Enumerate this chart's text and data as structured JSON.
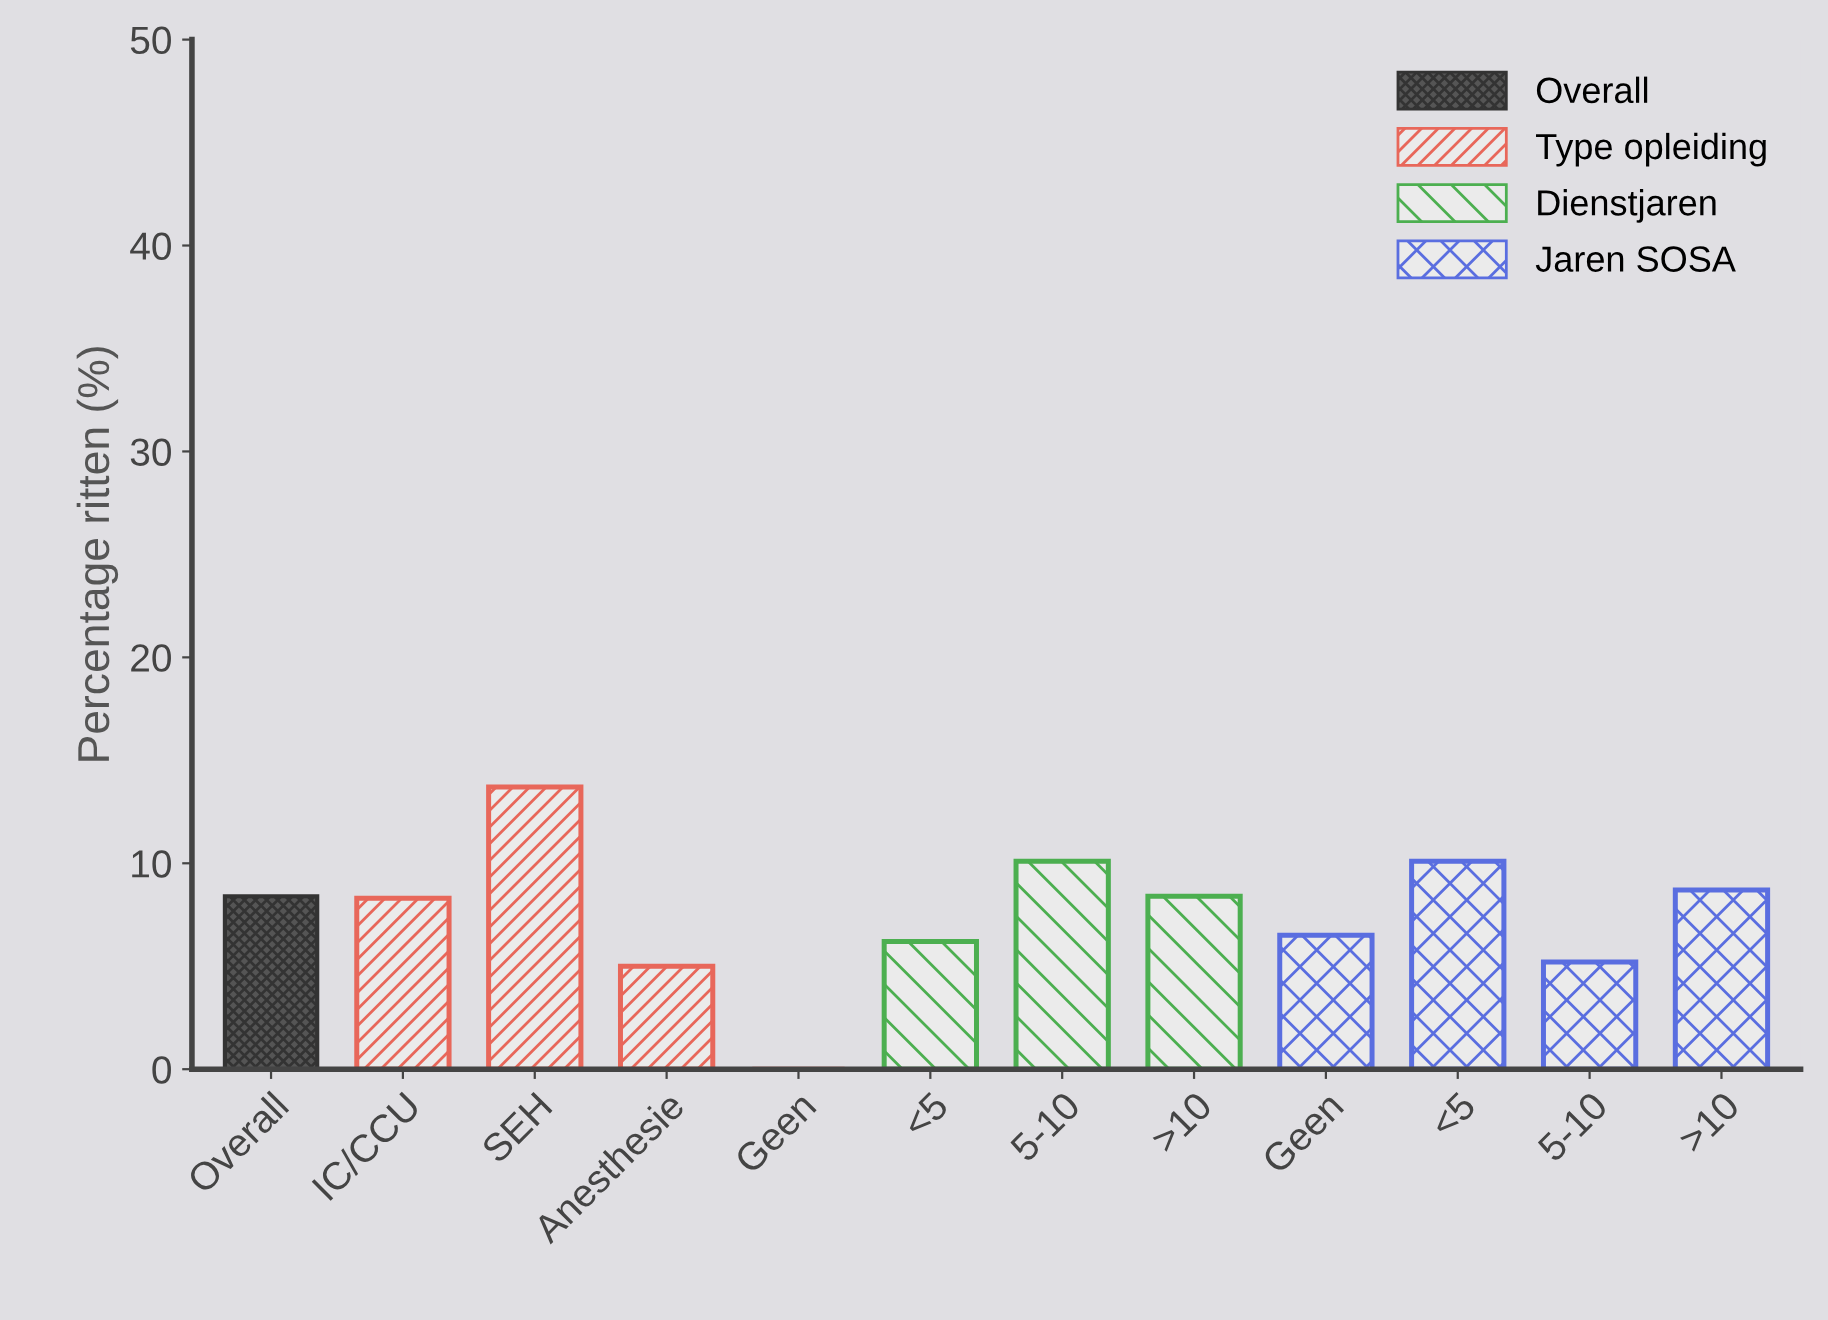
{
  "chart_data": {
    "type": "bar",
    "ylabel": "Percentage ritten (%)",
    "categories": [
      "Overall",
      "IC/CCU",
      "SEH",
      "Anesthesie",
      "Geen",
      "<5",
      "5-10",
      ">10",
      "Geen",
      "<5",
      "5-10",
      ">10"
    ],
    "series": [
      {
        "name": "Overall",
        "color": "#333333",
        "values": [
          8.4,
          null,
          null,
          null,
          null,
          null,
          null,
          null,
          null,
          null,
          null,
          null
        ]
      },
      {
        "name": "Type opleiding",
        "color": "#e8675a",
        "values": [
          null,
          8.3,
          13.7,
          5.0,
          0,
          null,
          null,
          null,
          null,
          null,
          null,
          null
        ]
      },
      {
        "name": "Dienstjaren",
        "color": "#4caf50",
        "values": [
          null,
          null,
          null,
          null,
          null,
          6.2,
          10.1,
          8.4,
          null,
          null,
          null,
          null
        ]
      },
      {
        "name": "Jaren SOSA",
        "color": "#5a6ee0",
        "values": [
          null,
          null,
          null,
          null,
          null,
          null,
          null,
          null,
          6.5,
          10.1,
          5.2,
          8.7
        ]
      }
    ],
    "ylim": [
      0,
      50
    ],
    "yticks": [
      0,
      10,
      20,
      30,
      40,
      50
    ],
    "grid": false,
    "legend": "top right"
  }
}
